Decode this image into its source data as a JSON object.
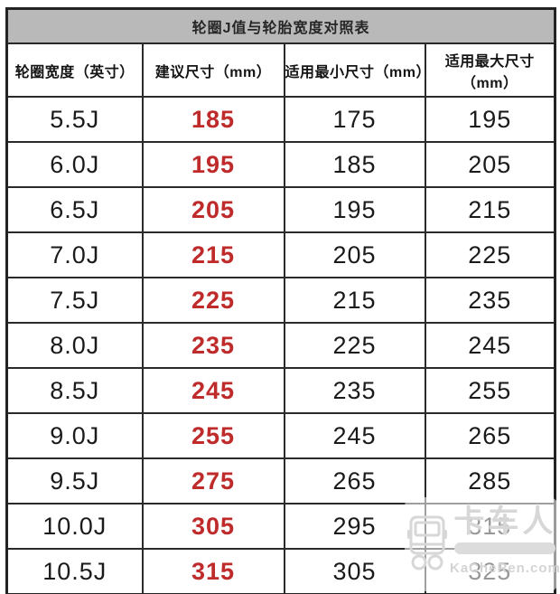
{
  "table": {
    "title": "轮圈J值与轮胎宽度对照表",
    "columns": [
      "轮圈宽度（英寸）",
      "建议尺寸（mm）",
      "适用最小尺寸（mm）",
      "适用最大尺寸（mm）"
    ],
    "rows": [
      {
        "rim_width": "5.5J",
        "suggested": "185",
        "min": "175",
        "max": "195"
      },
      {
        "rim_width": "6.0J",
        "suggested": "195",
        "min": "185",
        "max": "205"
      },
      {
        "rim_width": "6.5J",
        "suggested": "205",
        "min": "195",
        "max": "215"
      },
      {
        "rim_width": "7.0J",
        "suggested": "215",
        "min": "205",
        "max": "225"
      },
      {
        "rim_width": "7.5J",
        "suggested": "225",
        "min": "215",
        "max": "235"
      },
      {
        "rim_width": "8.0J",
        "suggested": "235",
        "min": "225",
        "max": "245"
      },
      {
        "rim_width": "8.5J",
        "suggested": "245",
        "min": "235",
        "max": "255"
      },
      {
        "rim_width": "9.0J",
        "suggested": "255",
        "min": "245",
        "max": "265"
      },
      {
        "rim_width": "9.5J",
        "suggested": "275",
        "min": "265",
        "max": "285"
      },
      {
        "rim_width": "10.0J",
        "suggested": "305",
        "min": "295",
        "max": "315"
      },
      {
        "rim_width": "10.5J",
        "suggested": "315",
        "min": "305",
        "max": "325"
      }
    ],
    "colors": {
      "title_bar_bg": "#b9b9b9",
      "border": "#2a2a2a",
      "suggested_text": "#bf2a2a",
      "body_text": "#1a1a1a"
    }
  },
  "watermark": {
    "icon": "truck-icon",
    "brand": "卡车人",
    "site": "KaCheRen.com",
    "color": "#d7d7d7"
  },
  "chart_data": {
    "type": "table",
    "title": "轮圈J值与轮胎宽度对照表",
    "columns": [
      "轮圈宽度（英寸）",
      "建议尺寸（mm）",
      "适用最小尺寸（mm）",
      "适用最大尺寸（mm）"
    ],
    "rows": [
      [
        "5.5J",
        185,
        175,
        195
      ],
      [
        "6.0J",
        195,
        185,
        205
      ],
      [
        "6.5J",
        205,
        195,
        215
      ],
      [
        "7.0J",
        215,
        205,
        225
      ],
      [
        "7.5J",
        225,
        215,
        235
      ],
      [
        "8.0J",
        235,
        225,
        245
      ],
      [
        "8.5J",
        245,
        235,
        255
      ],
      [
        "9.0J",
        255,
        245,
        265
      ],
      [
        "9.5J",
        275,
        265,
        285
      ],
      [
        "10.0J",
        305,
        295,
        315
      ],
      [
        "10.5J",
        315,
        305,
        325
      ]
    ],
    "layout_hints": {
      "suggested_column_color": "#bf2a2a",
      "title_bar_bg": "#b9b9b9",
      "grid": true
    }
  }
}
